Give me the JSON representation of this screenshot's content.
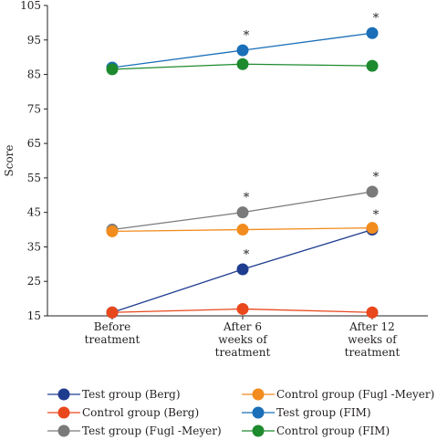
{
  "chart_data": {
    "type": "line",
    "title": "",
    "xlabel": "",
    "ylabel": "Score",
    "ylim": [
      15,
      105
    ],
    "yticks": [
      15,
      25,
      35,
      45,
      55,
      65,
      75,
      85,
      95,
      105
    ],
    "grid": false,
    "legend_position": "bottom",
    "categories": [
      [
        "Before",
        "treatment"
      ],
      [
        "After 6",
        "weeks of",
        "treatment"
      ],
      [
        "After 12",
        "weeks of",
        "treatment"
      ]
    ],
    "series": [
      {
        "name": "Test group (Berg)",
        "color": "#1f3d8f",
        "values": [
          16,
          28.5,
          40
        ],
        "significance": [
          false,
          true,
          true
        ]
      },
      {
        "name": "Control group (Berg)",
        "color": "#e8481c",
        "values": [
          16,
          17,
          16
        ],
        "significance": [
          false,
          false,
          false
        ]
      },
      {
        "name": "Test group (Fugl -Meyer)",
        "color": "#7a7a7a",
        "values": [
          40,
          45,
          51
        ],
        "significance": [
          false,
          true,
          true
        ]
      },
      {
        "name": "Control group (Fugl -Meyer)",
        "color": "#f28c1e",
        "values": [
          39.5,
          40,
          40.5
        ],
        "significance": [
          false,
          false,
          false
        ]
      },
      {
        "name": "Test group (FIM)",
        "color": "#1a6fb8",
        "values": [
          87,
          92,
          97
        ],
        "significance": [
          false,
          true,
          true
        ]
      },
      {
        "name": "Control group (FIM)",
        "color": "#1e8a2e",
        "values": [
          86.5,
          88,
          87.5
        ],
        "significance": [
          false,
          false,
          false
        ]
      }
    ],
    "annotation_symbol": "*"
  }
}
